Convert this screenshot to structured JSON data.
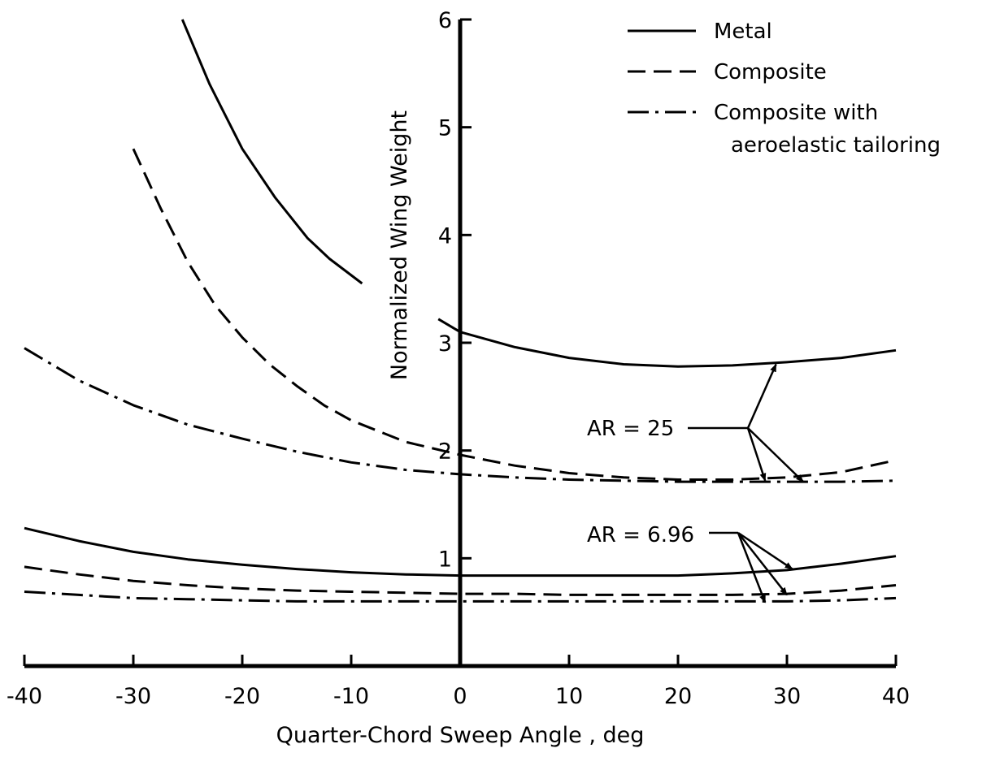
{
  "chart_data": {
    "type": "line",
    "xlabel": "Quarter-Chord Sweep Angle , deg",
    "ylabel": "Normalized Wing Weight",
    "xlim": [
      -40,
      40
    ],
    "ylim": [
      0,
      6
    ],
    "x_ticks": [
      -40,
      -30,
      -20,
      -10,
      0,
      10,
      20,
      30,
      40
    ],
    "y_ticks": [
      1,
      2,
      3,
      4,
      5,
      6
    ],
    "grid": false,
    "legend_position": "top-right",
    "legend": [
      {
        "label": "Metal",
        "style": "solid"
      },
      {
        "label": "Composite",
        "style": "dashed"
      },
      {
        "label": "Composite with aeroelastic tailoring",
        "label_lines": [
          "Composite with",
          "aeroelastic tailoring"
        ],
        "style": "dashdot"
      }
    ],
    "series": [
      {
        "group": "AR = 25",
        "material": "Metal",
        "style": "solid",
        "x": [
          -25.5,
          -23,
          -20,
          -17,
          -14,
          -12,
          -9
        ],
        "y": [
          6.0,
          5.4,
          4.8,
          4.35,
          3.97,
          3.78,
          3.55
        ]
      },
      {
        "group": "AR = 25",
        "material": "Metal",
        "style": "solid",
        "x": [
          -2,
          0,
          5,
          10,
          15,
          20,
          25,
          30,
          35,
          40
        ],
        "y": [
          3.22,
          3.1,
          2.96,
          2.86,
          2.8,
          2.78,
          2.79,
          2.82,
          2.86,
          2.93
        ]
      },
      {
        "group": "AR = 25",
        "material": "Composite",
        "style": "dashed",
        "x": [
          -30,
          -27.5,
          -25,
          -22.5,
          -20,
          -17.5,
          -15,
          -12.5,
          -10,
          -5,
          0,
          5,
          10,
          15,
          20,
          25,
          30,
          35,
          40
        ],
        "y": [
          4.8,
          4.25,
          3.75,
          3.35,
          3.05,
          2.8,
          2.6,
          2.42,
          2.28,
          2.08,
          1.96,
          1.86,
          1.79,
          1.75,
          1.73,
          1.73,
          1.75,
          1.8,
          1.91
        ]
      },
      {
        "group": "AR = 25",
        "material": "Composite with aeroelastic tailoring",
        "style": "dashdot",
        "x": [
          -40,
          -35,
          -30,
          -25,
          -20,
          -15,
          -10,
          -5,
          0,
          5,
          10,
          15,
          20,
          25,
          30,
          35,
          40
        ],
        "y": [
          2.95,
          2.65,
          2.42,
          2.24,
          2.11,
          1.99,
          1.89,
          1.82,
          1.78,
          1.75,
          1.73,
          1.72,
          1.71,
          1.71,
          1.71,
          1.71,
          1.72
        ]
      },
      {
        "group": "AR = 6.96",
        "material": "Metal",
        "style": "solid",
        "x": [
          -40,
          -35,
          -30,
          -25,
          -20,
          -15,
          -10,
          -5,
          0,
          5,
          10,
          15,
          20,
          25,
          30,
          35,
          40
        ],
        "y": [
          1.28,
          1.16,
          1.06,
          0.99,
          0.94,
          0.9,
          0.87,
          0.85,
          0.84,
          0.84,
          0.84,
          0.84,
          0.84,
          0.86,
          0.89,
          0.95,
          1.02
        ]
      },
      {
        "group": "AR = 6.96",
        "material": "Composite",
        "style": "dashed",
        "x": [
          -40,
          -35,
          -30,
          -25,
          -20,
          -15,
          -10,
          -5,
          0,
          5,
          10,
          15,
          20,
          25,
          30,
          35,
          40
        ],
        "y": [
          0.92,
          0.85,
          0.79,
          0.75,
          0.72,
          0.7,
          0.69,
          0.68,
          0.67,
          0.67,
          0.66,
          0.66,
          0.66,
          0.66,
          0.67,
          0.7,
          0.75
        ]
      },
      {
        "group": "AR = 6.96",
        "material": "Composite with aeroelastic tailoring",
        "style": "dashdot",
        "x": [
          -40,
          -35,
          -30,
          -25,
          -20,
          -15,
          -10,
          -5,
          0,
          5,
          10,
          15,
          20,
          25,
          30,
          35,
          40
        ],
        "y": [
          0.69,
          0.66,
          0.63,
          0.62,
          0.61,
          0.6,
          0.6,
          0.6,
          0.6,
          0.6,
          0.6,
          0.6,
          0.6,
          0.6,
          0.6,
          0.61,
          0.63
        ]
      }
    ],
    "annotations": [
      {
        "text": "AR = 25",
        "arrows_to": [
          [
            29,
            2.8
          ],
          [
            28,
            1.72
          ],
          [
            31.5,
            1.71
          ]
        ]
      },
      {
        "text": "AR = 6.96",
        "arrows_to": [
          [
            30.5,
            0.9
          ],
          [
            30,
            0.66
          ],
          [
            28,
            0.59
          ]
        ]
      }
    ]
  }
}
